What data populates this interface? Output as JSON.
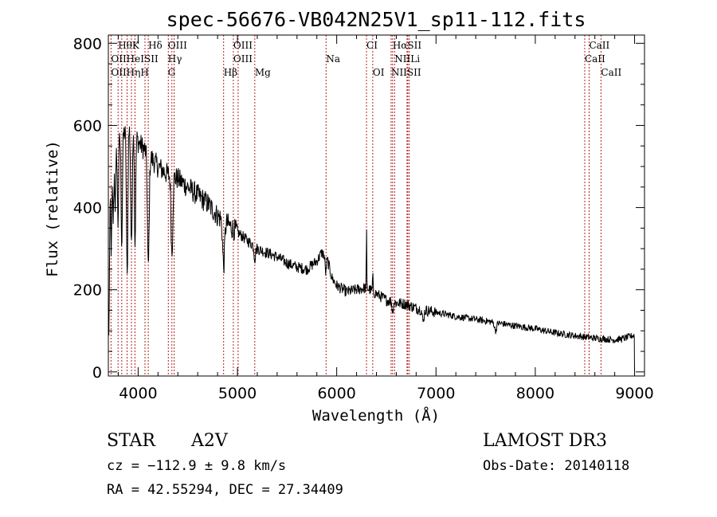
{
  "chart_data": {
    "type": "line",
    "title": "spec-56676-VB042N25V1_sp11-112.fits",
    "xlabel": "Wavelength (Å)",
    "ylabel": "Flux (relative)",
    "xlim": [
      3700,
      9100
    ],
    "ylim": [
      -10,
      820
    ],
    "x_ticks": [
      4000,
      5000,
      6000,
      7000,
      8000,
      9000
    ],
    "y_ticks": [
      0,
      200,
      400,
      600,
      800
    ],
    "x_minor_step": 200,
    "y_minor_step": 50,
    "line_color": "#000000",
    "marker_color": "#b22222",
    "continuum": {
      "x": [
        3705,
        3720,
        3760,
        3800,
        3850,
        3900,
        3950,
        4000,
        4100,
        4200,
        4300,
        4400,
        4500,
        4600,
        4700,
        4800,
        4900,
        5000,
        5100,
        5200,
        5300,
        5400,
        5500,
        5600,
        5700,
        5800,
        5850,
        5900,
        5950,
        6000,
        6100,
        6200,
        6300,
        6400,
        6500,
        6600,
        6700,
        6800,
        6900,
        7000,
        7200,
        7400,
        7600,
        7800,
        8000,
        8200,
        8400,
        8500,
        8600,
        8700,
        8800,
        8900,
        9000
      ],
      "y": [
        80,
        460,
        540,
        560,
        580,
        590,
        600,
        560,
        530,
        500,
        480,
        470,
        450,
        430,
        410,
        380,
        360,
        340,
        320,
        300,
        290,
        280,
        265,
        255,
        250,
        270,
        290,
        280,
        230,
        210,
        195,
        200,
        205,
        190,
        175,
        168,
        165,
        155,
        150,
        145,
        135,
        128,
        120,
        112,
        105,
        95,
        88,
        85,
        82,
        80,
        78,
        82,
        90
      ]
    },
    "absorption": {
      "x": [
        3730,
        3750,
        3770,
        3797,
        3835,
        3889,
        3933,
        3968,
        4102,
        4340,
        4861,
        5175,
        5890,
        6563,
        6870,
        7600
      ],
      "depth": [
        180,
        150,
        140,
        200,
        260,
        360,
        300,
        280,
        280,
        190,
        110,
        30,
        40,
        25,
        30,
        20
      ],
      "width": [
        8,
        8,
        8,
        8,
        9,
        10,
        10,
        10,
        12,
        12,
        14,
        10,
        10,
        8,
        12,
        14
      ]
    },
    "emission": {
      "x": [
        3960,
        6300,
        6363
      ],
      "height": [
        90,
        150,
        50
      ],
      "width": [
        4,
        3,
        3
      ]
    },
    "noise_amplitude": 14,
    "lines": [
      {
        "label": "HθK",
        "wavelengths": [
          3798,
          3933
        ],
        "row": 0,
        "anchor": 3798
      },
      {
        "label": "Hδ",
        "wavelengths": [
          4102
        ],
        "row": 0,
        "anchor": 4102
      },
      {
        "label": "OIII",
        "wavelengths": [
          4363
        ],
        "row": 0,
        "anchor": 4300
      },
      {
        "label": "OIII",
        "wavelengths": [
          4959
        ],
        "row": 0,
        "anchor": 4959
      },
      {
        "label": "CI",
        "wavelengths": [
          6300
        ],
        "row": 0,
        "anchor": 6300
      },
      {
        "label": "HαSII",
        "wavelengths": [
          6563,
          6716
        ],
        "row": 0,
        "anchor": 6563
      },
      {
        "label": "CaII",
        "wavelengths": [
          8542
        ],
        "row": 0,
        "anchor": 8542
      },
      {
        "label": "OIIHeISII",
        "wavelengths": [
          3727,
          3889,
          4069
        ],
        "row": 1,
        "anchor": 3727
      },
      {
        "label": "Hγ",
        "wavelengths": [
          4340
        ],
        "row": 1,
        "anchor": 4300
      },
      {
        "label": "OIII",
        "wavelengths": [
          5007
        ],
        "row": 1,
        "anchor": 4959
      },
      {
        "label": "Na",
        "wavelengths": [
          5893
        ],
        "row": 1,
        "anchor": 5893
      },
      {
        "label": "NIILi",
        "wavelengths": [
          6583,
          6708
        ],
        "row": 1,
        "anchor": 6583
      },
      {
        "label": "CaII",
        "wavelengths": [
          8498
        ],
        "row": 1,
        "anchor": 8498
      },
      {
        "label": "OIIHηH",
        "wavelengths": [
          3727,
          3835,
          3968
        ],
        "row": 2,
        "anchor": 3727
      },
      {
        "label": "G",
        "wavelengths": [
          4304
        ],
        "row": 2,
        "anchor": 4300
      },
      {
        "label": "Hβ",
        "wavelengths": [
          4861
        ],
        "row": 2,
        "anchor": 4861
      },
      {
        "label": "Mg",
        "wavelengths": [
          5175
        ],
        "row": 2,
        "anchor": 5175
      },
      {
        "label": "OI",
        "wavelengths": [
          6363
        ],
        "row": 2,
        "anchor": 6363
      },
      {
        "label": "NIISII",
        "wavelengths": [
          6548,
          6731
        ],
        "row": 2,
        "anchor": 6548
      },
      {
        "label": "CaII",
        "wavelengths": [
          8662
        ],
        "row": 2,
        "anchor": 8662
      }
    ]
  },
  "info": {
    "class": "STAR",
    "subclass": "A2V",
    "survey": "LAMOST DR3",
    "cz": "cz = −112.9 ± 9.8 km/s",
    "obs_date": "Obs-Date: 20140118",
    "radec": "RA =  42.55294, DEC =  27.34409"
  }
}
